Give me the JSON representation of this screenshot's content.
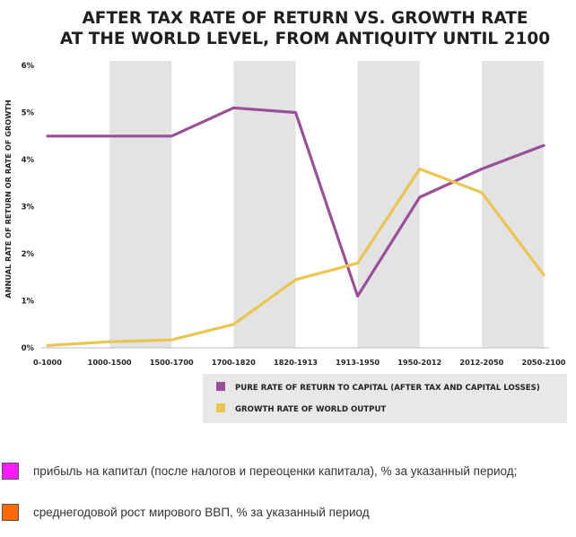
{
  "chart_data": {
    "type": "line",
    "title_lines": [
      "AFTER TAX RATE OF RETURN VS. GROWTH RATE",
      "AT THE WORLD LEVEL, FROM ANTIQUITY UNTIL 2100"
    ],
    "ylabel": "ANNUAL RATE OF RETURN OR RATE OF GROWTH",
    "xlabel": "",
    "categories": [
      "0-1000",
      "1000-1500",
      "1500-1700",
      "1700-1820",
      "1820-1913",
      "1913-1950",
      "1950-2012",
      "2012-2050",
      "2050-2100"
    ],
    "y_ticks": [
      "0%",
      "1%",
      "2%",
      "3%",
      "4%",
      "5%",
      "6%"
    ],
    "ylim": [
      0,
      6
    ],
    "shaded_bands": [
      [
        "1000-1500",
        "1500-1700"
      ],
      [
        "1700-1820",
        "1820-1913"
      ],
      [
        "1913-1950",
        "1950-2012"
      ],
      [
        "2012-2050",
        "2050-2100"
      ]
    ],
    "series": [
      {
        "name": "PURE RATE OF RETURN TO CAPITAL (AFTER TAX AND CAPITAL LOSSES)",
        "color": "#9b4f9b",
        "values": [
          4.5,
          4.5,
          4.5,
          5.1,
          5.0,
          1.1,
          3.2,
          3.8,
          4.3
        ]
      },
      {
        "name": "GROWTH RATE OF WORLD OUTPUT",
        "color": "#eac54f",
        "values": [
          0.05,
          0.13,
          0.17,
          0.5,
          1.45,
          1.8,
          3.8,
          3.3,
          1.55
        ]
      }
    ],
    "legend_position": "bottom-right"
  },
  "captions": [
    {
      "color": "#ff1aff",
      "text": "прибыль на капитал (после налогов и переоценки капитала), % за указанный период;"
    },
    {
      "color": "#ff6a00",
      "text": "среднегодовой рост мирового ВВП, % за указанный период"
    }
  ],
  "colors": {
    "band": "#e3e3e3",
    "legend_bg": "#e8e8e8",
    "axis": "#bdbdbd"
  }
}
